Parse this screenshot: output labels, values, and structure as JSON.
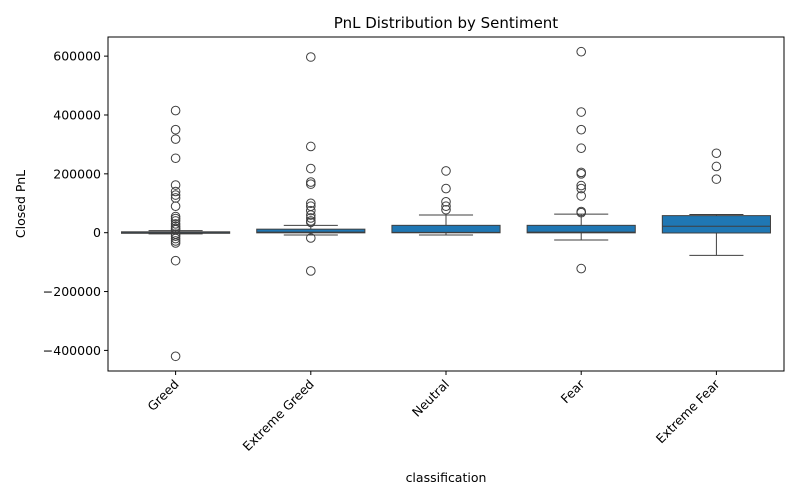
{
  "chart_data": {
    "type": "box",
    "title": "PnL Distribution by Sentiment",
    "xlabel": "classification",
    "ylabel": "Closed PnL",
    "ylim": [
      -470000,
      665000
    ],
    "yticks": [
      -400000,
      -200000,
      0,
      200000,
      400000,
      600000
    ],
    "ytick_labels": [
      "−400000",
      "−200000",
      "0",
      "200000",
      "400000",
      "600000"
    ],
    "grid": false,
    "box_color": "#1f77b4",
    "categories": [
      "Greed",
      "Extreme Greed",
      "Neutral",
      "Fear",
      "Extreme Fear"
    ],
    "boxes": [
      {
        "category": "Greed",
        "whisker_low": -4000,
        "q1": -600,
        "median": 1000,
        "q3": 3000,
        "whisker_high": 7000,
        "outliers": [
          415000,
          350000,
          318000,
          253000,
          162000,
          140000,
          128000,
          118000,
          90000,
          55000,
          48000,
          40000,
          30000,
          22000,
          15000,
          10000,
          -5000,
          -12000,
          -20000,
          -28000,
          -35000,
          -95000,
          -420000
        ]
      },
      {
        "category": "Extreme Greed",
        "whisker_low": -8000,
        "q1": -500,
        "median": 2000,
        "q3": 12000,
        "whisker_high": 25000,
        "outliers": [
          597000,
          293000,
          218000,
          172000,
          165000,
          100000,
          90000,
          75000,
          60000,
          50000,
          40000,
          35000,
          -18000,
          -130000
        ]
      },
      {
        "category": "Neutral",
        "whisker_low": -8000,
        "q1": -300,
        "median": 1000,
        "q3": 25000,
        "whisker_high": 60000,
        "outliers": [
          210000,
          150000,
          105000,
          90000,
          78000
        ]
      },
      {
        "category": "Fear",
        "whisker_low": -25000,
        "q1": -500,
        "median": 2000,
        "q3": 25000,
        "whisker_high": 63000,
        "outliers": [
          615000,
          410000,
          350000,
          287000,
          205000,
          200000,
          160000,
          150000,
          125000,
          72000,
          68000,
          -122000
        ]
      },
      {
        "category": "Extreme Fear",
        "whisker_low": -77000,
        "q1": -1000,
        "median": 22000,
        "q3": 58000,
        "whisker_high": 62000,
        "outliers": [
          270000,
          225000,
          182000
        ]
      }
    ]
  }
}
